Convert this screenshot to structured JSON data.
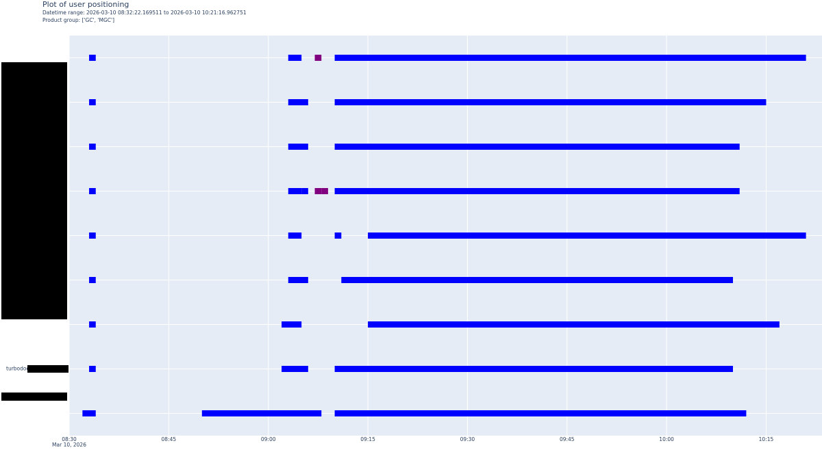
{
  "chart_data": {
    "type": "timeline",
    "title": "Plot of user positioning",
    "subtitle": "Datetime range: 2026-03-10 08:32:22.169511 to 2026-03-10 10:21:16.962751",
    "note": "Product group: ['GC', 'MGC']",
    "categories": [
      null,
      null,
      null,
      null,
      null,
      null,
      null,
      "turbodoes",
      null
    ],
    "segments": [
      [
        {
          "x": [
            "08:33",
            "08:34"
          ],
          "color": "#0000ff"
        },
        {
          "x": [
            "09:03",
            "09:05"
          ],
          "color": "#0000ff"
        },
        {
          "x": [
            "09:07",
            "09:08"
          ],
          "color": "#800080"
        },
        {
          "x": [
            "09:10",
            "10:21"
          ],
          "color": "#0000ff"
        }
      ],
      [
        {
          "x": [
            "08:33",
            "08:34"
          ],
          "color": "#0000ff"
        },
        {
          "x": [
            "09:03",
            "09:06"
          ],
          "color": "#0000ff"
        },
        {
          "x": [
            "09:10",
            "10:15"
          ],
          "color": "#0000ff"
        }
      ],
      [
        {
          "x": [
            "08:33",
            "08:34"
          ],
          "color": "#0000ff"
        },
        {
          "x": [
            "09:03",
            "09:06"
          ],
          "color": "#0000ff"
        },
        {
          "x": [
            "09:10",
            "10:11"
          ],
          "color": "#0000ff"
        }
      ],
      [
        {
          "x": [
            "08:33",
            "08:34"
          ],
          "color": "#0000ff"
        },
        {
          "x": [
            "09:03",
            "09:05"
          ],
          "color": "#0000ff"
        },
        {
          "x": [
            "09:05",
            "09:06"
          ],
          "color": "#0000ff"
        },
        {
          "x": [
            "09:07",
            "09:08"
          ],
          "color": "#800080"
        },
        {
          "x": [
            "09:08",
            "09:09"
          ],
          "color": "#800080"
        },
        {
          "x": [
            "09:10",
            "10:11"
          ],
          "color": "#0000ff"
        }
      ],
      [
        {
          "x": [
            "08:33",
            "08:34"
          ],
          "color": "#0000ff"
        },
        {
          "x": [
            "09:03",
            "09:05"
          ],
          "color": "#0000ff"
        },
        {
          "x": [
            "09:10",
            "09:11"
          ],
          "color": "#0000ff"
        },
        {
          "x": [
            "09:15",
            "10:21"
          ],
          "color": "#0000ff"
        }
      ],
      [
        {
          "x": [
            "08:33",
            "08:34"
          ],
          "color": "#0000ff"
        },
        {
          "x": [
            "09:03",
            "09:06"
          ],
          "color": "#0000ff"
        },
        {
          "x": [
            "09:11",
            "10:10"
          ],
          "color": "#0000ff"
        }
      ],
      [
        {
          "x": [
            "08:33",
            "08:34"
          ],
          "color": "#0000ff"
        },
        {
          "x": [
            "09:02",
            "09:05"
          ],
          "color": "#0000ff"
        },
        {
          "x": [
            "09:15",
            "10:17"
          ],
          "color": "#0000ff"
        }
      ],
      [
        {
          "x": [
            "08:33",
            "08:34"
          ],
          "color": "#0000ff"
        },
        {
          "x": [
            "09:02",
            "09:06"
          ],
          "color": "#0000ff"
        },
        {
          "x": [
            "09:10",
            "10:10"
          ],
          "color": "#0000ff"
        }
      ],
      [
        {
          "x": [
            "08:32",
            "08:34"
          ],
          "color": "#0000ff"
        },
        {
          "x": [
            "08:50",
            "09:08"
          ],
          "color": "#0000ff"
        },
        {
          "x": [
            "09:10",
            "10:12"
          ],
          "color": "#0000ff"
        }
      ]
    ],
    "xlim": [
      "08:30",
      "10:23"
    ],
    "xticks": [
      "08:30",
      "08:45",
      "09:00",
      "09:15",
      "09:30",
      "09:45",
      "10:00",
      "10:15"
    ],
    "xaxis_date": "Mar 10, 2026",
    "grid": true
  }
}
